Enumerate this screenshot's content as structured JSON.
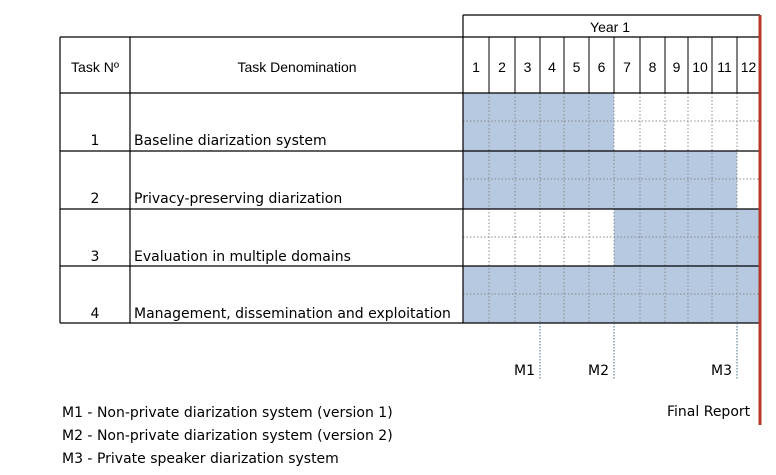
{
  "header": {
    "year_label": "Year 1",
    "task_no_label": "Task Nº",
    "task_name_label": "Task Denomination",
    "months": [
      "1",
      "2",
      "3",
      "4",
      "5",
      "6",
      "7",
      "8",
      "9",
      "10",
      "11",
      "12"
    ]
  },
  "tasks": [
    {
      "number": "1",
      "name": "Baseline diarization system",
      "active_months": [
        1,
        2,
        3,
        4,
        5,
        6
      ]
    },
    {
      "number": "2",
      "name": "Privacy-preserving diarization",
      "active_months": [
        1,
        2,
        3,
        4,
        5,
        6,
        7,
        8,
        9,
        10,
        11
      ]
    },
    {
      "number": "3",
      "name": "Evaluation in multiple domains",
      "active_months": [
        7,
        8,
        9,
        10,
        11,
        12
      ]
    },
    {
      "number": "4",
      "name": "Management, dissemination and exploitation",
      "active_months": [
        1,
        2,
        3,
        4,
        5,
        6,
        7,
        8,
        9,
        10,
        11,
        12
      ]
    }
  ],
  "milestones": [
    {
      "label": "M1",
      "after_month": 3
    },
    {
      "label": "M2",
      "after_month": 6
    },
    {
      "label": "M3",
      "after_month": 11
    }
  ],
  "final_report_label": "Final Report",
  "legend": [
    "M1 - Non-private diarization system (version 1)",
    "M2 - Non-private diarization system (version 2)",
    "M3 - Private speaker diarization system"
  ],
  "colors": {
    "bar_fill": "#b7c9e0",
    "grid_line": "#000000",
    "dotted_grid": "#8a8a8a",
    "milestone_line": "#3d6b87",
    "final_line": "#b5372a"
  }
}
